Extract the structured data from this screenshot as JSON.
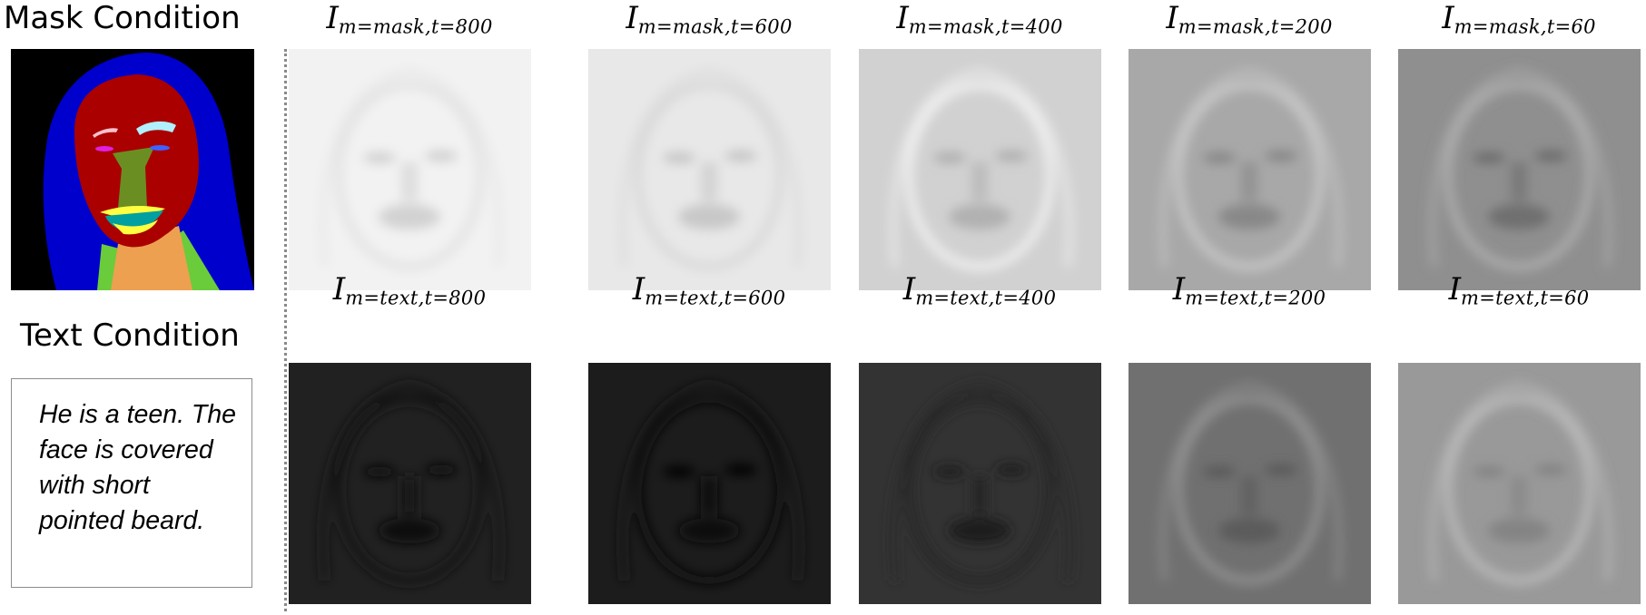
{
  "panels": {
    "mask_heading": "Mask Condition",
    "text_heading": "Text Condition",
    "text_caption": "He is a teen. The face is covered with short pointed beard."
  },
  "colors": {
    "background_black": "#000000",
    "hair_blue": "#0000cc",
    "skin_red": "#aa0000",
    "nose_green": "#6b8e23",
    "brow_left_pink": "#ffc0cb",
    "brow_right_cyan": "#b0f0ff",
    "eye_left_magenta": "#e020e0",
    "eye_right_blue": "#4060ff",
    "lip_yellow": "#ffff40",
    "mouth_teal": "#00a0a0",
    "neck_orange": "#eda050",
    "cloth_green": "#6acc3a"
  },
  "rows": [
    {
      "id": "mask",
      "symbol": "I",
      "columns": [
        {
          "subscript": "m=mask,t=800",
          "brightness": 0.95
        },
        {
          "subscript": "m=mask,t=600",
          "brightness": 0.91
        },
        {
          "subscript": "m=mask,t=400",
          "brightness": 0.82
        },
        {
          "subscript": "m=mask,t=200",
          "brightness": 0.66
        },
        {
          "subscript": "m=mask,t=60",
          "brightness": 0.56
        }
      ]
    },
    {
      "id": "text",
      "symbol": "I",
      "columns": [
        {
          "subscript": "m=text,t=800",
          "brightness": 0.13
        },
        {
          "subscript": "m=text,t=600",
          "brightness": 0.11
        },
        {
          "subscript": "m=text,t=400",
          "brightness": 0.2
        },
        {
          "subscript": "m=text,t=200",
          "brightness": 0.44
        },
        {
          "subscript": "m=text,t=60",
          "brightness": 0.6
        }
      ]
    }
  ]
}
